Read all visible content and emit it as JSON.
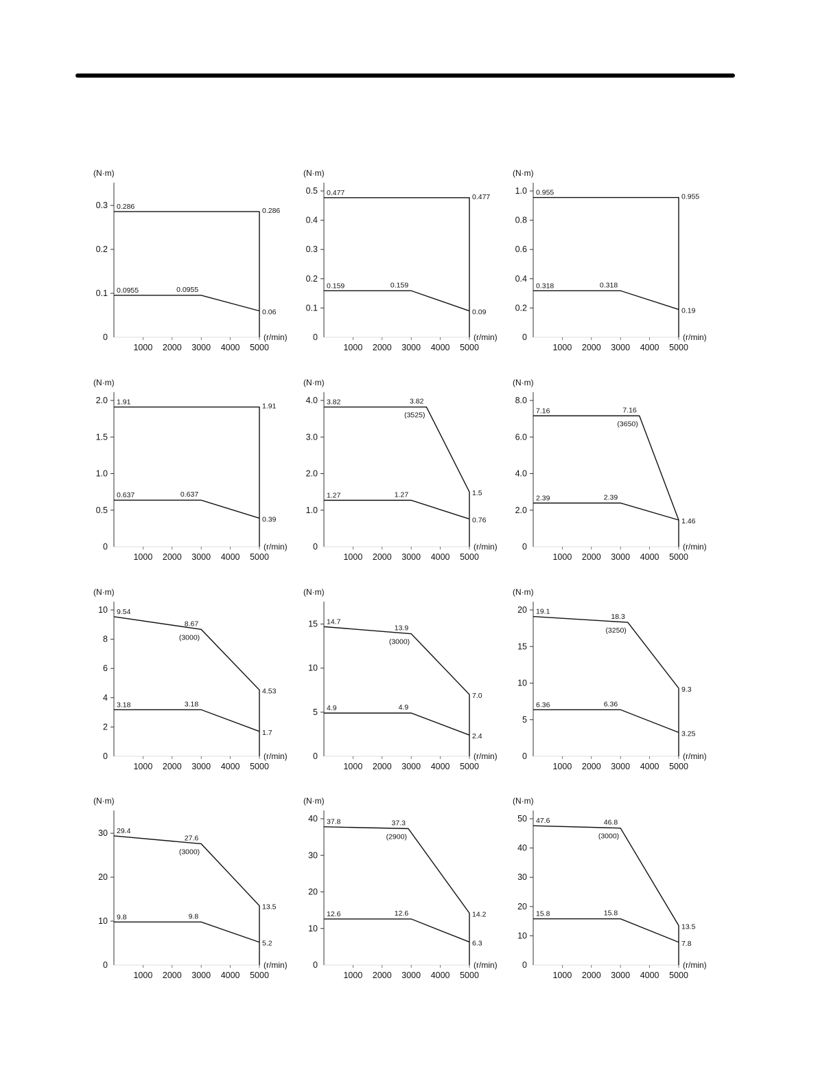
{
  "chart_data": [
    {
      "type": "line",
      "ylabel": "(N·m)",
      "xlabel": "(r/min)",
      "xlim": [
        0,
        5000
      ],
      "ylim": [
        0,
        0.333
      ],
      "yticks": [
        [
          0,
          "0"
        ],
        [
          0.1,
          "0.1"
        ],
        [
          0.2,
          "0.2"
        ],
        [
          0.3,
          "0.3"
        ]
      ],
      "peak": {
        "points": [
          [
            0,
            0.286,
            "0.286"
          ],
          [
            5000,
            0.286,
            "0.286"
          ]
        ]
      },
      "continuous": {
        "points": [
          [
            0,
            0.0955,
            "0.0955"
          ],
          [
            3000,
            0.0955,
            "0.0955"
          ],
          [
            5000,
            0.06,
            "0.06"
          ]
        ]
      }
    },
    {
      "type": "line",
      "ylabel": "(N·m)",
      "xlabel": "(r/min)",
      "xlim": [
        0,
        5000
      ],
      "ylim": [
        0,
        0.5
      ],
      "yticks": [
        [
          0,
          "0"
        ],
        [
          0.1,
          "0.1"
        ],
        [
          0.2,
          "0.2"
        ],
        [
          0.3,
          "0.3"
        ],
        [
          0.4,
          "0.4"
        ],
        [
          0.5,
          "0.5"
        ]
      ],
      "peak": {
        "points": [
          [
            0,
            0.477,
            "0.477"
          ],
          [
            5000,
            0.477,
            "0.477"
          ]
        ]
      },
      "continuous": {
        "points": [
          [
            0,
            0.159,
            "0.159"
          ],
          [
            3000,
            0.159,
            "0.159"
          ],
          [
            5000,
            0.09,
            "0.09"
          ]
        ]
      }
    },
    {
      "type": "line",
      "ylabel": "(N·m)",
      "xlabel": "(r/min)",
      "xlim": [
        0,
        5000
      ],
      "ylim": [
        0,
        1.0
      ],
      "yticks": [
        [
          0,
          "0"
        ],
        [
          0.2,
          "0.2"
        ],
        [
          0.4,
          "0.4"
        ],
        [
          0.6,
          "0.6"
        ],
        [
          0.8,
          "0.8"
        ],
        [
          1.0,
          "1.0"
        ]
      ],
      "peak": {
        "points": [
          [
            0,
            0.955,
            "0.955"
          ],
          [
            5000,
            0.955,
            "0.955"
          ]
        ]
      },
      "continuous": {
        "points": [
          [
            0,
            0.318,
            "0.318"
          ],
          [
            3000,
            0.318,
            "0.318"
          ],
          [
            5000,
            0.19,
            "0.19"
          ]
        ]
      }
    },
    {
      "type": "line",
      "ylabel": "(N·m)",
      "xlabel": "(r/min)",
      "xlim": [
        0,
        5000
      ],
      "ylim": [
        0,
        2.0
      ],
      "yticks": [
        [
          0,
          "0"
        ],
        [
          0.5,
          "0.5"
        ],
        [
          1.0,
          "1.0"
        ],
        [
          1.5,
          "1.5"
        ],
        [
          2.0,
          "2.0"
        ]
      ],
      "peak": {
        "points": [
          [
            0,
            1.91,
            "1.91"
          ],
          [
            5000,
            1.91,
            "1.91"
          ]
        ]
      },
      "continuous": {
        "points": [
          [
            0,
            0.637,
            "0.637"
          ],
          [
            3000,
            0.637,
            "0.637"
          ],
          [
            5000,
            0.39,
            "0.39"
          ]
        ]
      }
    },
    {
      "type": "line",
      "ylabel": "(N·m)",
      "xlabel": "(r/min)",
      "xlim": [
        0,
        5000
      ],
      "ylim": [
        0,
        4.0
      ],
      "yticks": [
        [
          0,
          "0"
        ],
        [
          1,
          "1.0"
        ],
        [
          2,
          "2.0"
        ],
        [
          3,
          "3.0"
        ],
        [
          4,
          "4.0"
        ]
      ],
      "peak": {
        "points": [
          [
            0,
            3.82,
            "3.82"
          ],
          [
            3525,
            3.82,
            "3.82",
            "(3525)"
          ],
          [
            5000,
            1.5,
            "1.5"
          ]
        ]
      },
      "continuous": {
        "points": [
          [
            0,
            1.27,
            "1.27"
          ],
          [
            3000,
            1.27,
            "1.27"
          ],
          [
            5000,
            0.76,
            "0.76"
          ]
        ]
      }
    },
    {
      "type": "line",
      "ylabel": "(N·m)",
      "xlabel": "(r/min)",
      "xlim": [
        0,
        5000
      ],
      "ylim": [
        0,
        8.0
      ],
      "yticks": [
        [
          0,
          "0"
        ],
        [
          2,
          "2.0"
        ],
        [
          4,
          "4.0"
        ],
        [
          6,
          "6.0"
        ],
        [
          8,
          "8.0"
        ]
      ],
      "peak": {
        "points": [
          [
            0,
            7.16,
            "7.16"
          ],
          [
            3650,
            7.16,
            "7.16",
            "(3650)"
          ],
          [
            5000,
            1.46,
            ""
          ]
        ]
      },
      "continuous": {
        "points": [
          [
            0,
            2.39,
            "2.39"
          ],
          [
            3000,
            2.39,
            "2.39"
          ],
          [
            5000,
            1.46,
            "1.46"
          ]
        ]
      }
    },
    {
      "type": "line",
      "ylabel": "(N·m)",
      "xlabel": "(r/min)",
      "xlim": [
        0,
        5000
      ],
      "ylim": [
        0,
        10
      ],
      "yticks": [
        [
          0,
          "0"
        ],
        [
          2,
          "2"
        ],
        [
          4,
          "4"
        ],
        [
          6,
          "6"
        ],
        [
          8,
          "8"
        ],
        [
          10,
          "10"
        ]
      ],
      "peak": {
        "points": [
          [
            0,
            9.54,
            "9.54"
          ],
          [
            3000,
            8.67,
            "8.67",
            "(3000)"
          ],
          [
            5000,
            4.53,
            "4.53"
          ]
        ]
      },
      "continuous": {
        "points": [
          [
            0,
            3.18,
            "3.18"
          ],
          [
            3000,
            3.18,
            "3.18"
          ],
          [
            5000,
            1.7,
            "1.7"
          ]
        ]
      }
    },
    {
      "type": "line",
      "ylabel": "(N·m)",
      "xlabel": "(r/min)",
      "xlim": [
        0,
        5000
      ],
      "ylim": [
        0,
        16.6
      ],
      "yticks": [
        [
          0,
          "0"
        ],
        [
          5,
          "5"
        ],
        [
          10,
          "10"
        ],
        [
          15,
          "15"
        ]
      ],
      "peak": {
        "points": [
          [
            0,
            14.7,
            "14.7"
          ],
          [
            3000,
            13.9,
            "13.9",
            "(3000)"
          ],
          [
            5000,
            7.0,
            "7.0"
          ]
        ]
      },
      "continuous": {
        "points": [
          [
            0,
            4.9,
            "4.9"
          ],
          [
            3000,
            4.9,
            "4.9"
          ],
          [
            5000,
            2.4,
            "2.4"
          ]
        ]
      }
    },
    {
      "type": "line",
      "ylabel": "(N·m)",
      "xlabel": "(r/min)",
      "xlim": [
        0,
        5000
      ],
      "ylim": [
        0,
        20
      ],
      "yticks": [
        [
          0,
          "0"
        ],
        [
          5,
          "5"
        ],
        [
          10,
          "10"
        ],
        [
          15,
          "15"
        ],
        [
          20,
          "20"
        ]
      ],
      "peak": {
        "points": [
          [
            0,
            19.1,
            "19.1"
          ],
          [
            3250,
            18.3,
            "18.3",
            "(3250)"
          ],
          [
            5000,
            9.3,
            "9.3"
          ]
        ]
      },
      "continuous": {
        "points": [
          [
            0,
            6.36,
            "6.36"
          ],
          [
            3000,
            6.36,
            "6.36"
          ],
          [
            5000,
            3.25,
            "3.25"
          ]
        ]
      }
    },
    {
      "type": "line",
      "ylabel": "(N·m)",
      "xlabel": "(r/min)",
      "xlim": [
        0,
        5000
      ],
      "ylim": [
        0,
        33.3
      ],
      "yticks": [
        [
          0,
          "0"
        ],
        [
          10,
          "10"
        ],
        [
          20,
          "20"
        ],
        [
          30,
          "30"
        ]
      ],
      "peak": {
        "points": [
          [
            0,
            29.4,
            "29.4"
          ],
          [
            3000,
            27.6,
            "27.6",
            "(3000)"
          ],
          [
            5000,
            13.5,
            "13.5"
          ]
        ]
      },
      "continuous": {
        "points": [
          [
            0,
            9.8,
            "9.8"
          ],
          [
            3000,
            9.8,
            "9.8"
          ],
          [
            5000,
            5.2,
            "5.2"
          ]
        ]
      }
    },
    {
      "type": "line",
      "ylabel": "(N·m)",
      "xlabel": "(r/min)",
      "xlim": [
        0,
        5000
      ],
      "ylim": [
        0,
        40
      ],
      "yticks": [
        [
          0,
          "0"
        ],
        [
          10,
          "10"
        ],
        [
          20,
          "20"
        ],
        [
          30,
          "30"
        ],
        [
          40,
          "40"
        ]
      ],
      "peak": {
        "points": [
          [
            0,
            37.8,
            "37.8"
          ],
          [
            2900,
            37.3,
            "37.3",
            "(2900)"
          ],
          [
            5000,
            14.2,
            "14.2"
          ]
        ]
      },
      "continuous": {
        "points": [
          [
            0,
            12.6,
            "12.6"
          ],
          [
            3000,
            12.6,
            "12.6"
          ],
          [
            5000,
            6.3,
            "6.3"
          ]
        ]
      }
    },
    {
      "type": "line",
      "ylabel": "(N·m)",
      "xlabel": "(r/min)",
      "xlim": [
        0,
        5000
      ],
      "ylim": [
        0,
        50
      ],
      "yticks": [
        [
          0,
          "0"
        ],
        [
          10,
          "10"
        ],
        [
          20,
          "20"
        ],
        [
          30,
          "30"
        ],
        [
          40,
          "40"
        ],
        [
          50,
          "50"
        ]
      ],
      "peak": {
        "points": [
          [
            0,
            47.6,
            "47.6"
          ],
          [
            3000,
            46.8,
            "46.8",
            "(3000)"
          ],
          [
            5000,
            13.5,
            "13.5"
          ]
        ]
      },
      "continuous": {
        "points": [
          [
            0,
            15.8,
            "15.8"
          ],
          [
            3000,
            15.8,
            "15.8"
          ],
          [
            5000,
            7.8,
            "7.8"
          ]
        ]
      }
    }
  ],
  "xticks": [
    [
      1000,
      "1000"
    ],
    [
      2000,
      "2000"
    ],
    [
      3000,
      "3000"
    ],
    [
      4000,
      "4000"
    ],
    [
      5000,
      "5000"
    ]
  ]
}
